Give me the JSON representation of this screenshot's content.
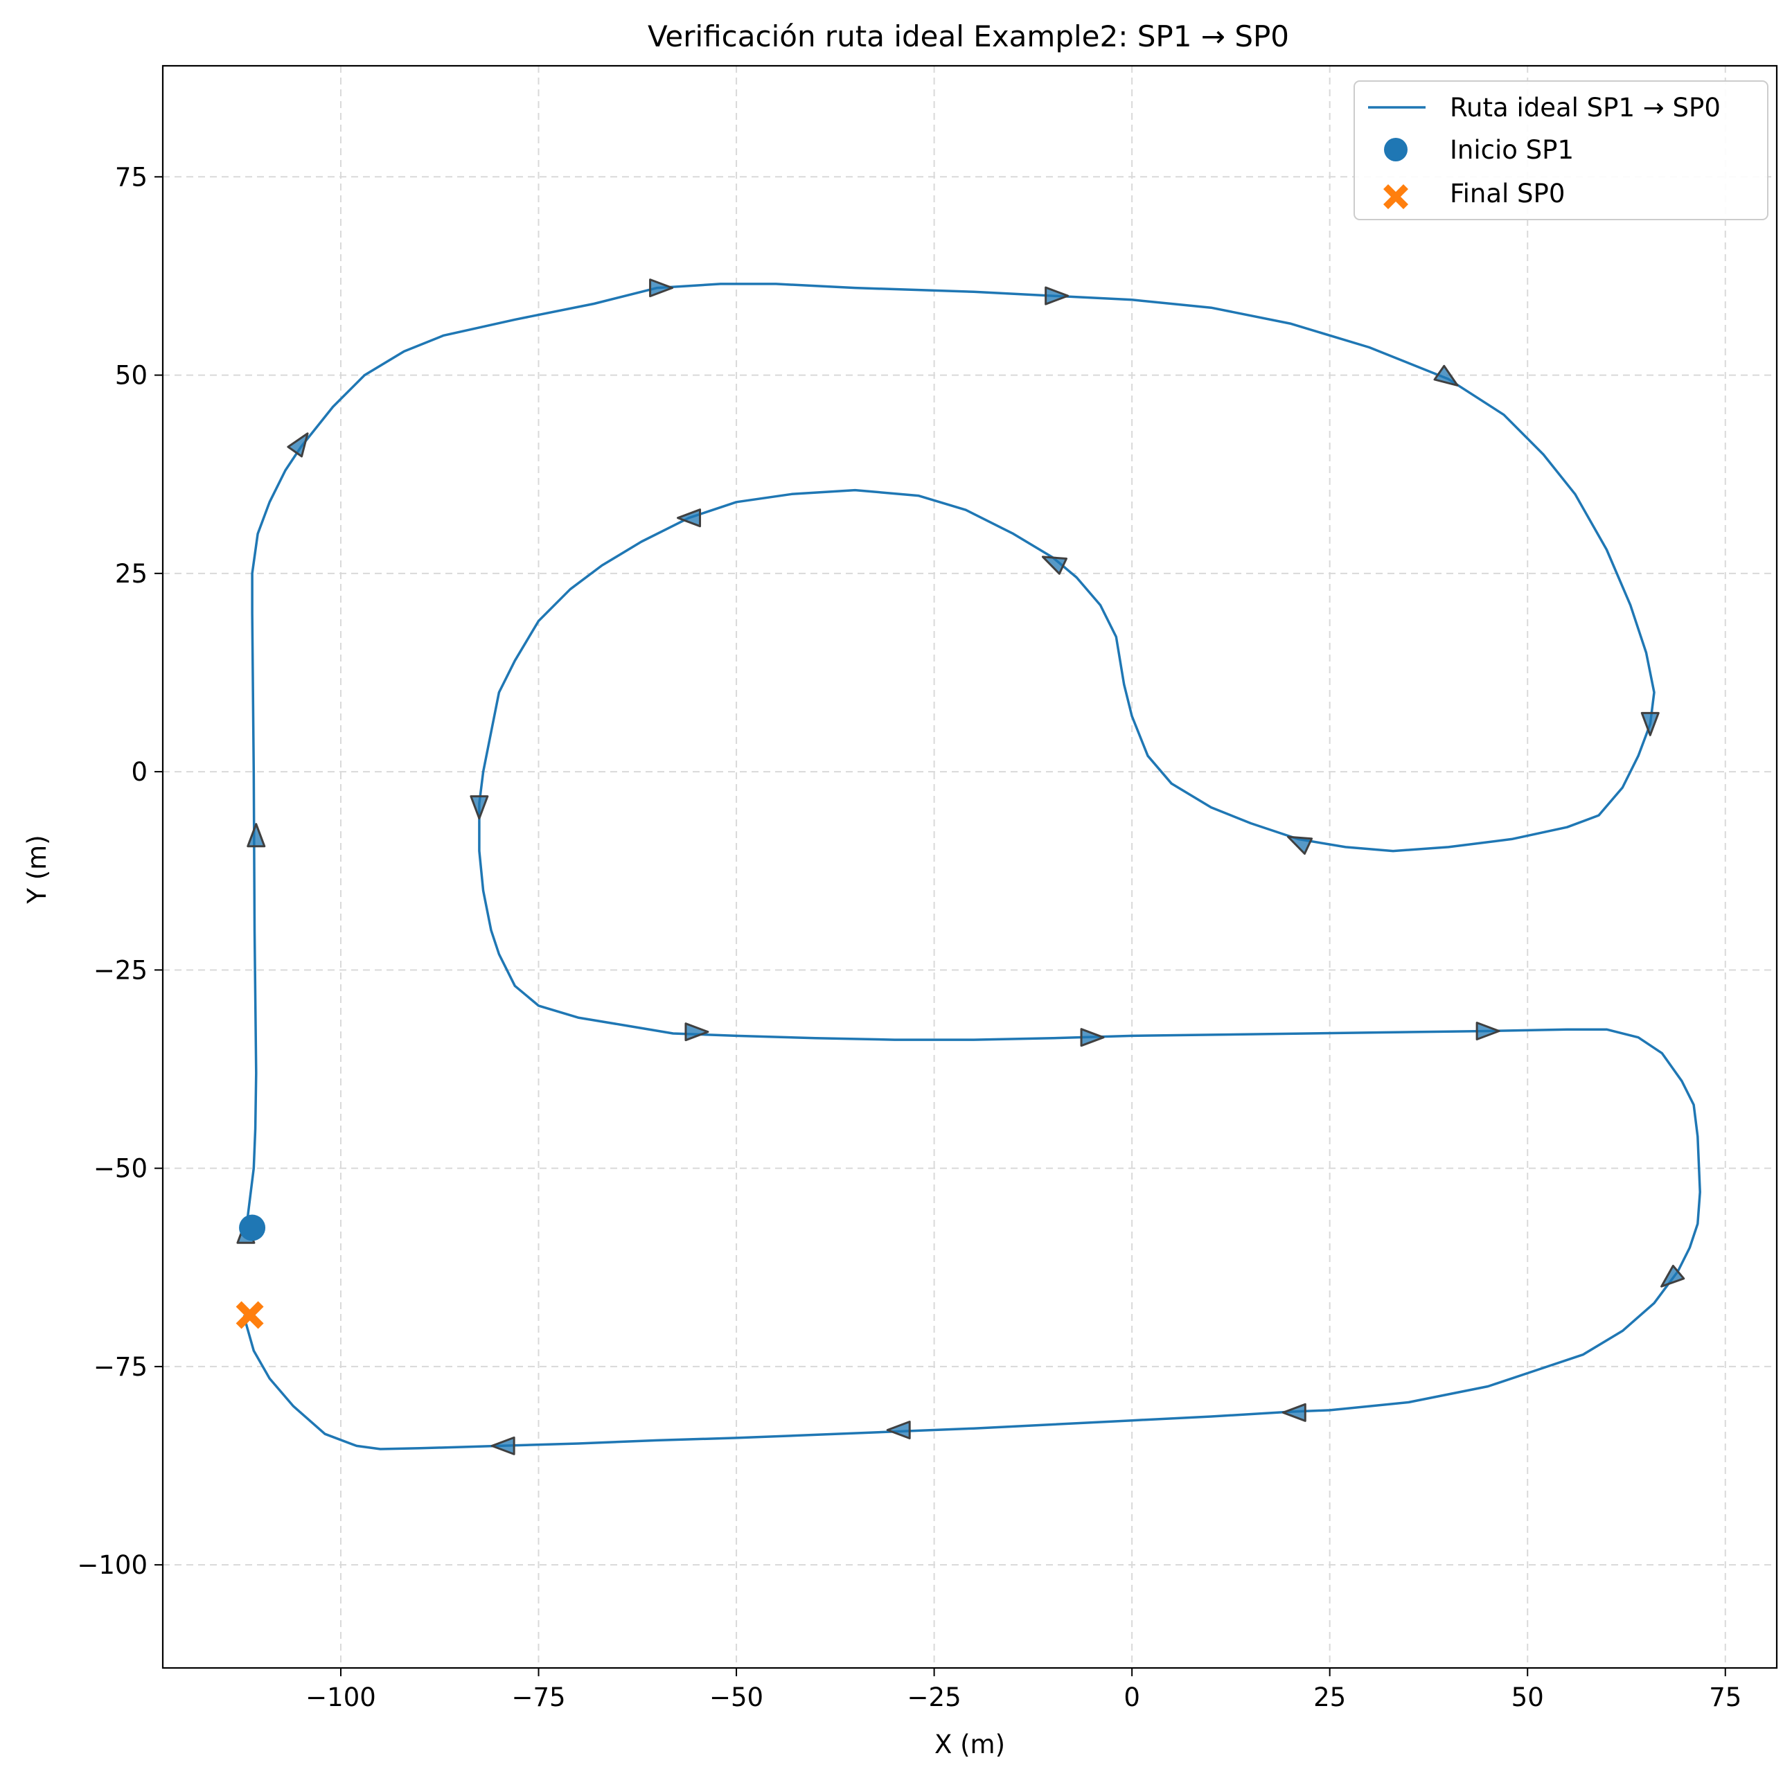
{
  "chart_data": {
    "type": "line",
    "title": "Verificación ruta ideal Example2: SP1 → SP0",
    "xlabel": "X (m)",
    "ylabel": "Y (m)",
    "xlim": [
      -122.5,
      81.5
    ],
    "ylim": [
      -113,
      89
    ],
    "xticks": [
      -100,
      -75,
      -50,
      -25,
      0,
      25,
      50,
      75
    ],
    "xtick_labels": [
      "−100",
      "−75",
      "−50",
      "−25",
      "0",
      "25",
      "50",
      "75"
    ],
    "yticks": [
      -100,
      -75,
      -50,
      -25,
      0,
      25,
      50,
      75
    ],
    "ytick_labels": [
      "−100",
      "−75",
      "−50",
      "−25",
      "0",
      "25",
      "50",
      "75"
    ],
    "grid": true,
    "legend_position": "top-right",
    "colors": {
      "route": "#1f77b4",
      "start": "#1f77b4",
      "end": "#ff7f0e",
      "arrow_edge": "#404040",
      "grid": "#d9d9d9"
    },
    "series": [
      {
        "name": "Ruta ideal SP1 → SP0",
        "marker": "line",
        "points": [
          [
            -112,
            -58
          ],
          [
            -111.5,
            -54
          ],
          [
            -111,
            -50
          ],
          [
            -110.8,
            -45
          ],
          [
            -110.7,
            -38
          ],
          [
            -110.9,
            -20
          ],
          [
            -111,
            0
          ],
          [
            -111.2,
            20
          ],
          [
            -111.2,
            25
          ],
          [
            -110.5,
            30
          ],
          [
            -109,
            34
          ],
          [
            -107,
            38
          ],
          [
            -105,
            41
          ],
          [
            -101,
            46
          ],
          [
            -97,
            50
          ],
          [
            -92,
            53
          ],
          [
            -87,
            55
          ],
          [
            -78,
            57
          ],
          [
            -68,
            59
          ],
          [
            -60,
            61
          ],
          [
            -52,
            61.5
          ],
          [
            -45,
            61.5
          ],
          [
            -35,
            61
          ],
          [
            -20,
            60.5
          ],
          [
            -10,
            60
          ],
          [
            0,
            59.5
          ],
          [
            10,
            58.5
          ],
          [
            20,
            56.5
          ],
          [
            30,
            53.5
          ],
          [
            40,
            49.5
          ],
          [
            47,
            45
          ],
          [
            52,
            40
          ],
          [
            56,
            35
          ],
          [
            60,
            28
          ],
          [
            63,
            21
          ],
          [
            65,
            15
          ],
          [
            66,
            10
          ],
          [
            65.5,
            6
          ],
          [
            64,
            2
          ],
          [
            62,
            -2
          ],
          [
            59,
            -5.5
          ],
          [
            55,
            -7
          ],
          [
            48,
            -8.5
          ],
          [
            40,
            -9.5
          ],
          [
            33,
            -10
          ],
          [
            27,
            -9.5
          ],
          [
            21,
            -8.5
          ],
          [
            15,
            -6.5
          ],
          [
            10,
            -4.5
          ],
          [
            5,
            -1.5
          ],
          [
            2,
            2
          ],
          [
            0,
            7
          ],
          [
            -1,
            11
          ],
          [
            -2,
            17
          ],
          [
            -4,
            21
          ],
          [
            -7,
            24.5
          ],
          [
            -10,
            27
          ],
          [
            -15,
            30
          ],
          [
            -21,
            33
          ],
          [
            -27,
            34.8
          ],
          [
            -35,
            35.5
          ],
          [
            -43,
            35
          ],
          [
            -50,
            34
          ],
          [
            -56,
            32
          ],
          [
            -62,
            29
          ],
          [
            -67,
            26
          ],
          [
            -71,
            23
          ],
          [
            -75,
            19
          ],
          [
            -78,
            14
          ],
          [
            -80,
            10
          ],
          [
            -81,
            5
          ],
          [
            -82,
            0
          ],
          [
            -82.5,
            -4
          ],
          [
            -82.5,
            -10
          ],
          [
            -82,
            -15
          ],
          [
            -81,
            -20
          ],
          [
            -80,
            -23
          ],
          [
            -78,
            -27
          ],
          [
            -75,
            -29.5
          ],
          [
            -70,
            -31
          ],
          [
            -64,
            -32
          ],
          [
            -58,
            -33
          ],
          [
            -50,
            -33.3
          ],
          [
            -40,
            -33.6
          ],
          [
            -30,
            -33.8
          ],
          [
            -20,
            -33.8
          ],
          [
            -10,
            -33.6
          ],
          [
            0,
            -33.3
          ],
          [
            15,
            -33.1
          ],
          [
            30,
            -32.9
          ],
          [
            45,
            -32.7
          ],
          [
            55,
            -32.5
          ],
          [
            60,
            -32.5
          ],
          [
            64,
            -33.5
          ],
          [
            67,
            -35.5
          ],
          [
            69.5,
            -39
          ],
          [
            71,
            -42
          ],
          [
            71.5,
            -46
          ],
          [
            71.8,
            -53
          ],
          [
            71.5,
            -57
          ],
          [
            70.5,
            -60
          ],
          [
            69,
            -63
          ],
          [
            66,
            -67
          ],
          [
            62,
            -70.5
          ],
          [
            57,
            -73.5
          ],
          [
            51,
            -75.5
          ],
          [
            45,
            -77.5
          ],
          [
            35,
            -79.5
          ],
          [
            25,
            -80.5
          ],
          [
            20,
            -80.7
          ],
          [
            10,
            -81.3
          ],
          [
            0,
            -81.8
          ],
          [
            -10,
            -82.3
          ],
          [
            -20,
            -82.8
          ],
          [
            -30,
            -83.2
          ],
          [
            -40,
            -83.6
          ],
          [
            -50,
            -84
          ],
          [
            -60,
            -84.3
          ],
          [
            -70,
            -84.7
          ],
          [
            -80,
            -85
          ],
          [
            -90,
            -85.3
          ],
          [
            -95,
            -85.4
          ],
          [
            -98,
            -85
          ],
          [
            -102,
            -83.5
          ],
          [
            -106,
            -80
          ],
          [
            -109,
            -76.5
          ],
          [
            -111,
            -73
          ],
          [
            -112,
            -69.5
          ],
          [
            -112.2,
            -68.5
          ]
        ]
      },
      {
        "name": "Inicio SP1",
        "marker": "circle",
        "points": [
          [
            -111.2,
            -57.5
          ]
        ]
      },
      {
        "name": "Final SP0",
        "marker": "X",
        "points": [
          [
            -111.5,
            -68.5
          ]
        ]
      }
    ],
    "direction_arrows": [
      {
        "x": -112,
        "y": -58,
        "dir": "up"
      },
      {
        "x": -110.7,
        "y": -8,
        "dir": "up"
      },
      {
        "x": -105,
        "y": 41.5,
        "dir": "upright"
      },
      {
        "x": -59.5,
        "y": 61,
        "dir": "right"
      },
      {
        "x": -9.5,
        "y": 60,
        "dir": "right"
      },
      {
        "x": 40,
        "y": 49.5,
        "dir": "downright"
      },
      {
        "x": 65.5,
        "y": 6,
        "dir": "down"
      },
      {
        "x": 21,
        "y": -8.8,
        "dir": "upleft"
      },
      {
        "x": -10,
        "y": 26.5,
        "dir": "upleft"
      },
      {
        "x": -56,
        "y": 32,
        "dir": "left"
      },
      {
        "x": -82.5,
        "y": -4.5,
        "dir": "down"
      },
      {
        "x": -55,
        "y": -32.8,
        "dir": "right"
      },
      {
        "x": -5,
        "y": -33.5,
        "dir": "right"
      },
      {
        "x": 45,
        "y": -32.7,
        "dir": "right"
      },
      {
        "x": 68,
        "y": -64,
        "dir": "downleft"
      },
      {
        "x": 20.5,
        "y": -80.8,
        "dir": "left"
      },
      {
        "x": -29.5,
        "y": -83,
        "dir": "left"
      },
      {
        "x": -79.5,
        "y": -85,
        "dir": "left"
      }
    ]
  }
}
